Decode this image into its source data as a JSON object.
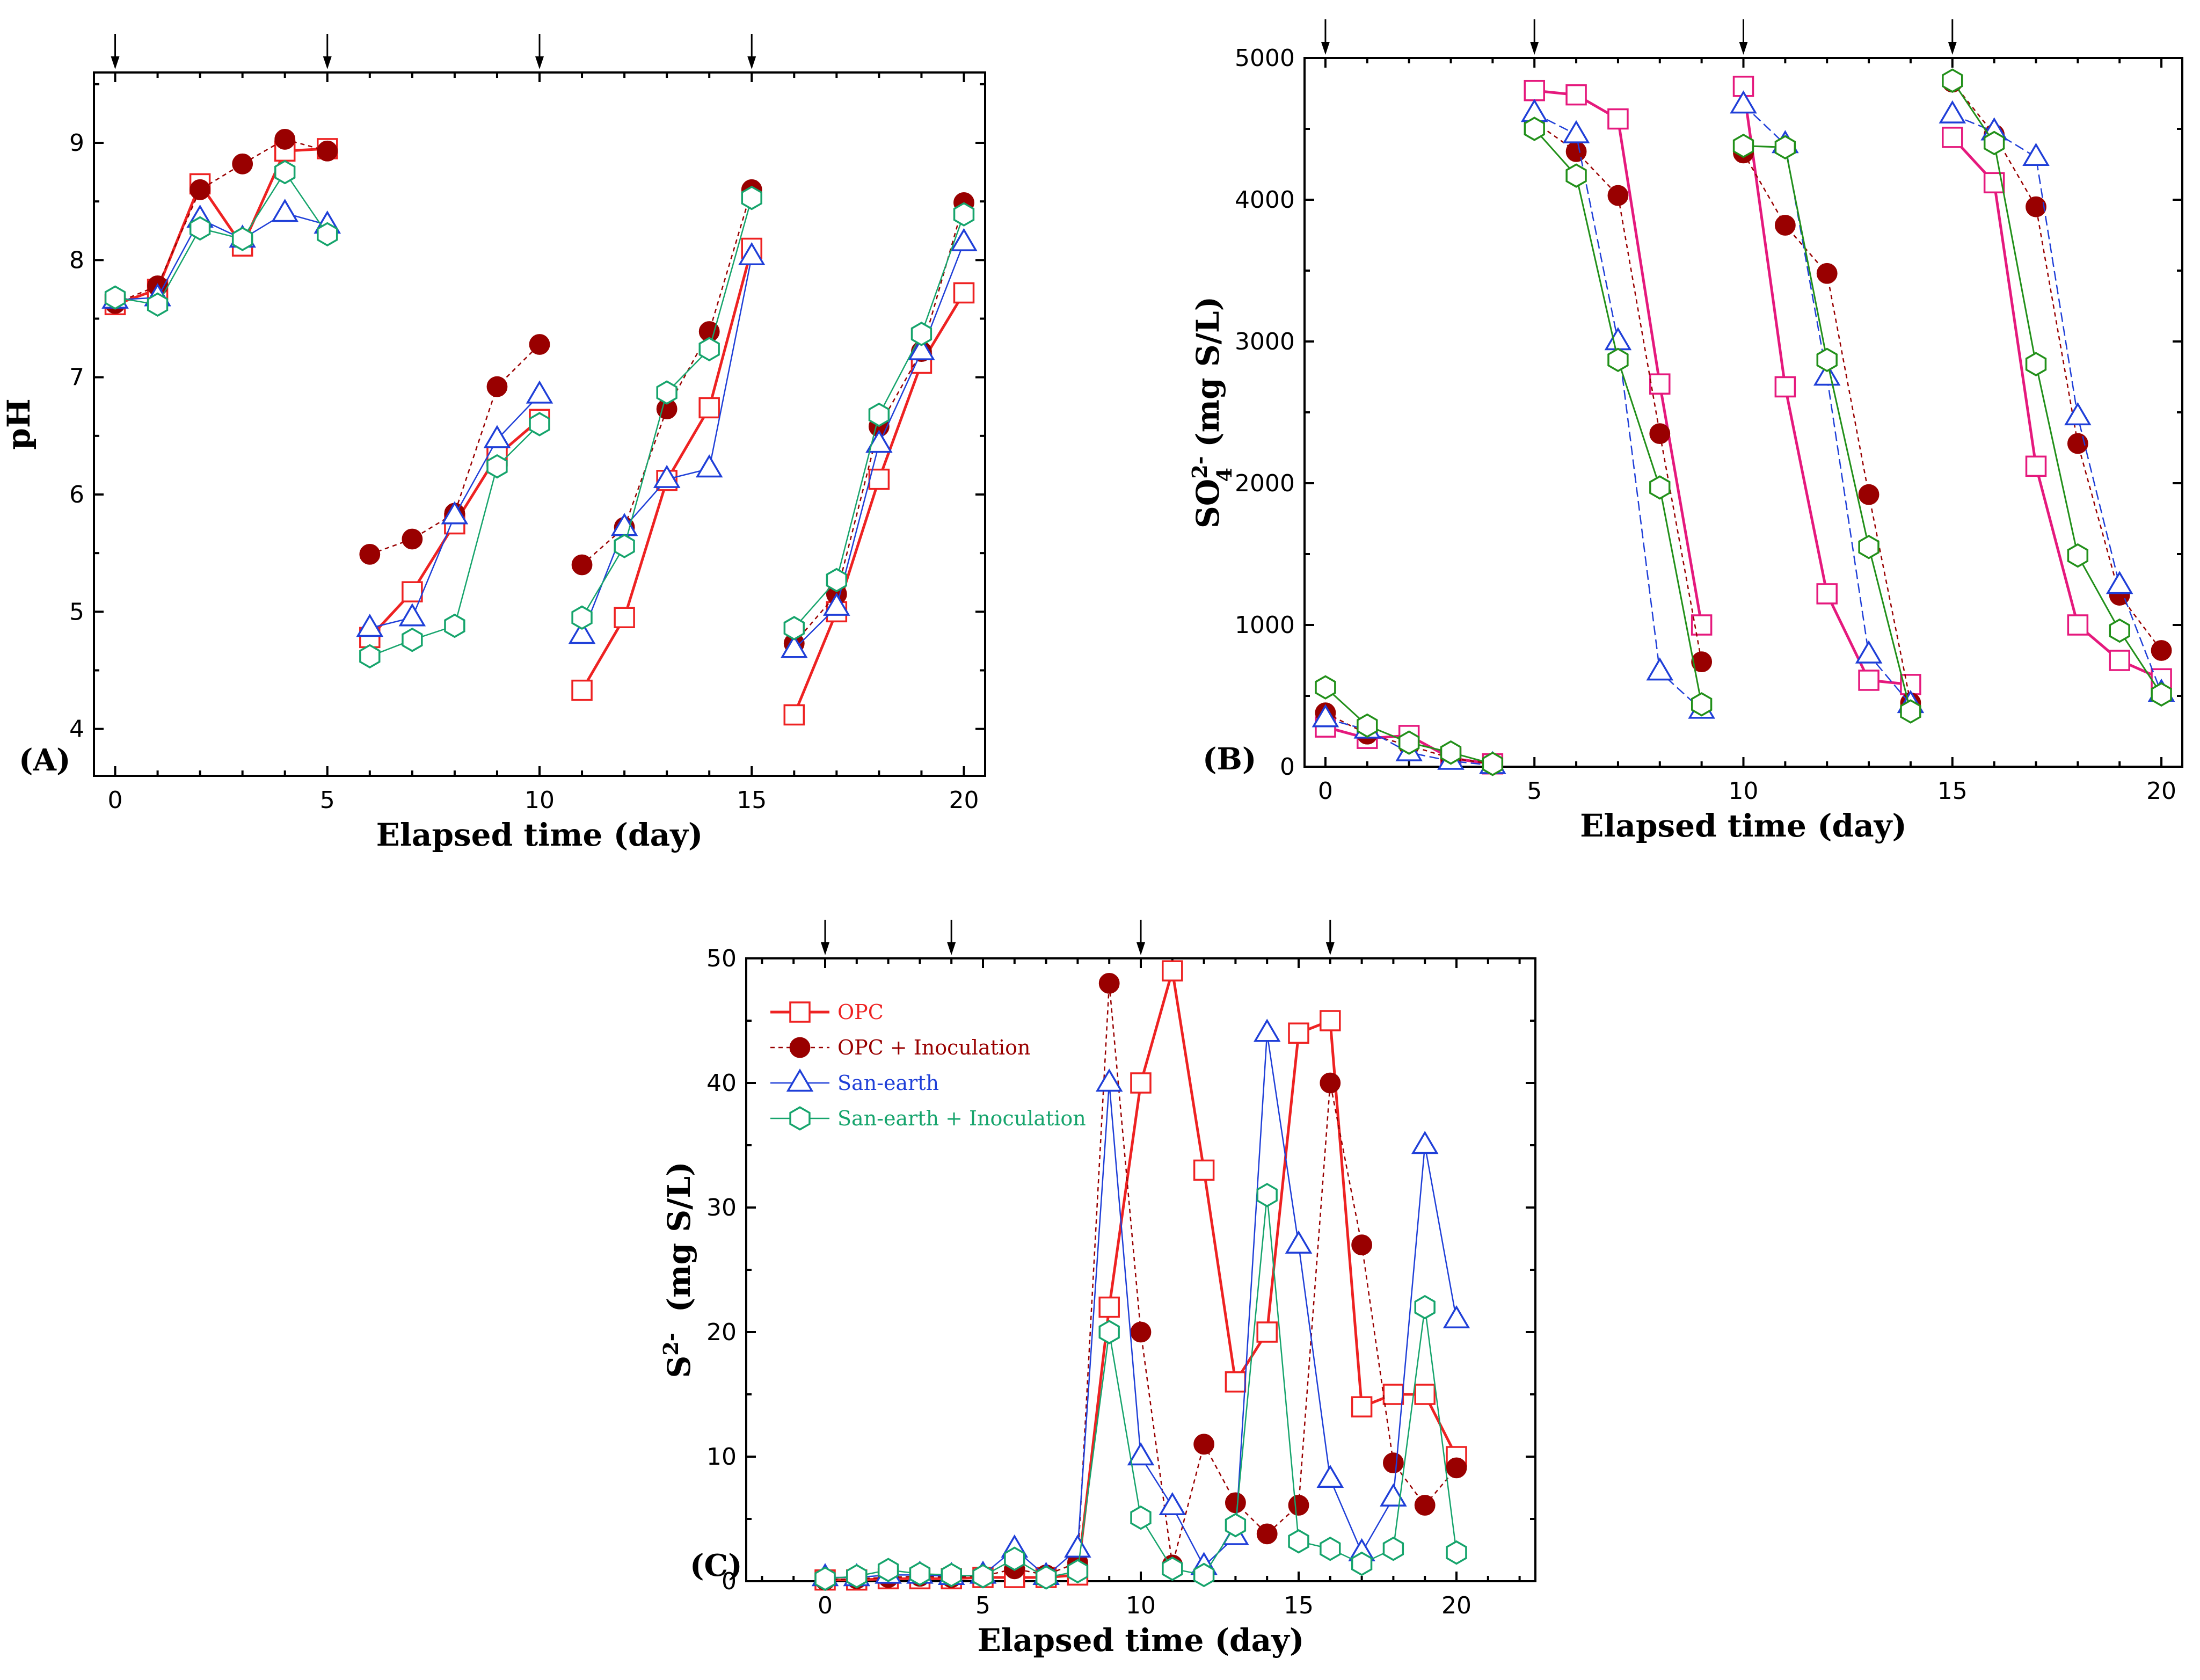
{
  "chart_data": [
    {
      "id": "A",
      "type": "line",
      "panel_label": "(A)",
      "xlabel": "Elapsed time (day)",
      "ylabel": "pH",
      "xlim": [
        -0.5,
        20.5
      ],
      "ylim": [
        3.6,
        9.6
      ],
      "xticks": [
        0,
        5,
        10,
        15,
        20
      ],
      "yticks": [
        4,
        5,
        6,
        7,
        8,
        9
      ],
      "arrows": [
        0,
        5,
        10,
        15
      ],
      "series": [
        {
          "name": "OPC",
          "segments": [
            {
              "x": [
                0,
                1,
                2,
                3,
                4,
                5
              ],
              "y": [
                7.62,
                7.75,
                8.65,
                8.12,
                8.93,
                8.95
              ]
            },
            {
              "x": [
                6,
                7,
                8,
                9,
                10
              ],
              "y": [
                4.78,
                5.17,
                5.75,
                6.33,
                6.64
              ]
            },
            {
              "x": [
                11,
                12,
                13,
                14,
                15
              ],
              "y": [
                4.33,
                4.95,
                6.12,
                6.74,
                8.1
              ]
            },
            {
              "x": [
                16,
                17,
                18,
                19,
                20
              ],
              "y": [
                4.12,
                5.0,
                6.13,
                7.12,
                7.72
              ]
            }
          ]
        },
        {
          "name": "OPC + Inoculation",
          "segments": [
            {
              "x": [
                0,
                1,
                2,
                3,
                4,
                5
              ],
              "y": [
                7.63,
                7.78,
                8.6,
                8.82,
                9.03,
                8.93
              ]
            },
            {
              "x": [
                6,
                7,
                8,
                9,
                10
              ],
              "y": [
                5.49,
                5.62,
                5.84,
                6.92,
                7.28
              ]
            },
            {
              "x": [
                11,
                12,
                13,
                14,
                15
              ],
              "y": [
                5.4,
                5.72,
                6.73,
                7.39,
                8.6
              ]
            },
            {
              "x": [
                16,
                17,
                18,
                19,
                20
              ],
              "y": [
                4.73,
                5.15,
                6.58,
                7.22,
                8.49
              ]
            }
          ]
        },
        {
          "name": "San-earth",
          "segments": [
            {
              "x": [
                0,
                1,
                2,
                3,
                4,
                5
              ],
              "y": [
                7.66,
                7.68,
                8.35,
                8.18,
                8.4,
                8.3
              ]
            },
            {
              "x": [
                6,
                7,
                8,
                9,
                10
              ],
              "y": [
                4.86,
                4.95,
                5.82,
                6.47,
                6.85
              ]
            },
            {
              "x": [
                11,
                12,
                13,
                14,
                15
              ],
              "y": [
                4.8,
                5.72,
                6.13,
                6.22,
                8.03
              ]
            },
            {
              "x": [
                16,
                17,
                18,
                19,
                20
              ],
              "y": [
                4.68,
                5.04,
                6.43,
                7.22,
                8.15
              ]
            }
          ]
        },
        {
          "name": "San-earth + Inoculation",
          "segments": [
            {
              "x": [
                0,
                1,
                2,
                3,
                4,
                5
              ],
              "y": [
                7.68,
                7.62,
                8.27,
                8.18,
                8.75,
                8.22
              ]
            },
            {
              "x": [
                6,
                7,
                8,
                9,
                10
              ],
              "y": [
                4.62,
                4.76,
                4.88,
                6.24,
                6.6
              ]
            },
            {
              "x": [
                11,
                12,
                13,
                14,
                15
              ],
              "y": [
                4.95,
                5.56,
                6.87,
                7.24,
                8.53
              ]
            },
            {
              "x": [
                16,
                17,
                18,
                19,
                20
              ],
              "y": [
                4.86,
                5.27,
                6.68,
                7.37,
                8.39
              ]
            }
          ]
        }
      ]
    },
    {
      "id": "B",
      "type": "line",
      "panel_label": "(B)",
      "xlabel": "Elapsed time (day)",
      "ylabel": "SO₄²⁻ (mg S/L)",
      "ylabel_parts": {
        "main": "SO",
        "sub": "4",
        "sup": "2-",
        "unit": "(mg S/L)"
      },
      "xlim": [
        -0.5,
        20.5
      ],
      "ylim": [
        0,
        5000
      ],
      "xticks": [
        0,
        5,
        10,
        15,
        20
      ],
      "yticks": [
        0,
        1000,
        2000,
        3000,
        4000,
        5000
      ],
      "arrows": [
        0,
        5,
        10,
        15
      ],
      "series": [
        {
          "name": "OPC",
          "segments": [
            {
              "x": [
                0,
                1,
                2,
                3,
                4
              ],
              "y": [
                280,
                200,
                220,
                60,
                20
              ]
            },
            {
              "x": [
                5,
                6,
                7,
                8,
                9
              ],
              "y": [
                4770,
                4740,
                4570,
                2700,
                1000
              ]
            },
            {
              "x": [
                10,
                11,
                12,
                13,
                14
              ],
              "y": [
                4800,
                2680,
                1220,
                610,
                580
              ]
            },
            {
              "x": [
                15,
                16,
                17,
                18,
                19,
                20
              ],
              "y": [
                4440,
                4120,
                2120,
                1000,
                750,
                620
              ]
            }
          ]
        },
        {
          "name": "OPC + Inoculation",
          "segments": [
            {
              "x": [
                0,
                1,
                2,
                3,
                4
              ],
              "y": [
                380,
                230,
                150,
                60,
                20
              ]
            },
            {
              "x": [
                5,
                6,
                7,
                8,
                9
              ],
              "y": [
                4550,
                4340,
                4030,
                2350,
                740
              ]
            },
            {
              "x": [
                10,
                11,
                12,
                13,
                14
              ],
              "y": [
                4330,
                3820,
                3480,
                1920,
                450
              ]
            },
            {
              "x": [
                15,
                16,
                17,
                18,
                19,
                20
              ],
              "y": [
                4830,
                4460,
                3950,
                2280,
                1210,
                820
              ]
            }
          ]
        },
        {
          "name": "San-earth",
          "segments": [
            {
              "x": [
                0,
                1,
                2,
                3,
                4
              ],
              "y": [
                340,
                260,
                100,
                40,
                10
              ]
            },
            {
              "x": [
                5,
                6,
                7,
                8,
                9
              ],
              "y": [
                4610,
                4460,
                3000,
                670,
                400
              ]
            },
            {
              "x": [
                10,
                11,
                12,
                13,
                14
              ],
              "y": [
                4670,
                4390,
                2750,
                790,
                440
              ]
            },
            {
              "x": [
                15,
                16,
                17,
                18,
                19,
                20
              ],
              "y": [
                4600,
                4480,
                4300,
                2470,
                1280,
                520
              ]
            }
          ]
        },
        {
          "name": "San-earth + Inoculation",
          "segments": [
            {
              "x": [
                0,
                1,
                2,
                3,
                4
              ],
              "y": [
                560,
                290,
                170,
                100,
                20
              ]
            },
            {
              "x": [
                5,
                6,
                7,
                8,
                9
              ],
              "y": [
                4500,
                4170,
                2870,
                1970,
                440
              ]
            },
            {
              "x": [
                10,
                11,
                12,
                13,
                14
              ],
              "y": [
                4380,
                4370,
                2870,
                1550,
                390
              ]
            },
            {
              "x": [
                15,
                16,
                17,
                18,
                19,
                20
              ],
              "y": [
                4840,
                4400,
                2840,
                1490,
                960,
                510
              ]
            }
          ]
        }
      ]
    },
    {
      "id": "C",
      "type": "line",
      "panel_label": "(C)",
      "xlabel": "Elapsed time (day)",
      "ylabel": "S²⁻ (mg S/L)",
      "ylabel_parts": {
        "main": "S",
        "sup": "2-",
        "unit": "(mg S/L)"
      },
      "xlim": [
        -2.5,
        22.5
      ],
      "ylim": [
        0,
        50
      ],
      "xticks": [
        0,
        5,
        10,
        15,
        20
      ],
      "yticks": [
        0,
        10,
        20,
        30,
        40,
        50
      ],
      "arrows": [
        0,
        4,
        10,
        16
      ],
      "legend": [
        "OPC",
        "OPC + Inoculation",
        "San-earth",
        "San-earth + Inoculation"
      ],
      "series": [
        {
          "name": "OPC",
          "segments": [
            {
              "x": [
                0,
                1,
                2,
                3,
                4,
                5,
                6,
                7,
                8,
                9,
                10,
                11,
                12,
                13,
                14,
                15,
                16,
                17,
                18,
                19,
                20
              ],
              "y": [
                0.1,
                0.1,
                0.2,
                0.2,
                0.2,
                0.3,
                0.3,
                0.3,
                0.5,
                22,
                40,
                49,
                33,
                16,
                20,
                44,
                45,
                14,
                15,
                15,
                10
              ]
            }
          ]
        },
        {
          "name": "OPC + Inoculation",
          "segments": [
            {
              "x": [
                0,
                1,
                2,
                3,
                4,
                5,
                6,
                7,
                8,
                9,
                10,
                11,
                12,
                13,
                14,
                15,
                16,
                17,
                18,
                19,
                20
              ],
              "y": [
                0.1,
                0.2,
                0.3,
                0.4,
                0.3,
                0.4,
                1.0,
                0.5,
                1.5,
                48,
                20,
                1.3,
                11,
                6.3,
                3.8,
                6.1,
                40,
                27,
                9.5,
                6.1,
                9.1
              ]
            }
          ]
        },
        {
          "name": "San-earth",
          "segments": [
            {
              "x": [
                0,
                1,
                2,
                3,
                4,
                5,
                6,
                7,
                8,
                9,
                10,
                11,
                12,
                13,
                14,
                15,
                16,
                17,
                18,
                19,
                20
              ],
              "y": [
                0.3,
                0.3,
                0.5,
                0.5,
                0.4,
                0.5,
                2.6,
                0.4,
                2.6,
                40,
                10,
                6,
                1.2,
                3.6,
                44,
                27,
                8.2,
                2.3,
                6.7,
                35,
                21
              ]
            }
          ]
        },
        {
          "name": "San-earth + Inoculation",
          "segments": [
            {
              "x": [
                0,
                1,
                2,
                3,
                4,
                5,
                6,
                7,
                8,
                9,
                10,
                11,
                12,
                13,
                14,
                15,
                16,
                17,
                18,
                19,
                20
              ],
              "y": [
                0.2,
                0.4,
                0.9,
                0.6,
                0.5,
                0.4,
                1.8,
                0.3,
                0.8,
                20,
                5.1,
                1.0,
                0.5,
                4.5,
                31,
                3.2,
                2.6,
                1.4,
                2.6,
                22,
                2.3
              ]
            }
          ]
        }
      ]
    }
  ],
  "styles": {
    "OPC": {
      "color": "#ee2222",
      "marker": "square",
      "dash": "",
      "width": 5
    },
    "OPC + Inoculation": {
      "color": "#990000",
      "marker": "filled-circle",
      "dash": "8,7",
      "width": 2.5
    },
    "San-earth": {
      "color": "#1f3fd8",
      "marker": "triangle",
      "dash": "",
      "width": 2.5
    },
    "San-earth + Inoculation": {
      "color": "#16a46c",
      "marker": "hexagon",
      "dash": "",
      "width": 2.5
    }
  },
  "panelB_styles": {
    "OPC": {
      "color": "#e5197d",
      "marker": "square",
      "dash": "",
      "width": 5
    },
    "OPC + Inoculation": {
      "color": "#990000",
      "marker": "filled-circle",
      "dash": "8,7",
      "width": 2.5
    },
    "San-earth": {
      "color": "#1f3fd8",
      "marker": "triangle",
      "dash": "18,8",
      "width": 2.5
    },
    "San-earth + Inoculation": {
      "color": "#22901a",
      "marker": "hexagon",
      "dash": "",
      "width": 3
    }
  }
}
